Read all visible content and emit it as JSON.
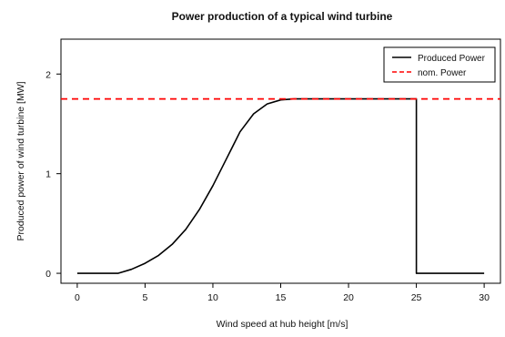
{
  "chart_data": {
    "type": "line",
    "title": "Power production of a typical wind turbine",
    "xlabel": "Wind speed at hub height [m/s]",
    "ylabel": "Produced power of wind turbine [MW]",
    "xlim": [
      -1.2,
      31.2
    ],
    "ylim": [
      -0.1,
      2.35
    ],
    "xticks": [
      0,
      5,
      10,
      15,
      20,
      25,
      30
    ],
    "yticks": [
      0,
      1,
      2
    ],
    "legend_position": "top-right",
    "series": [
      {
        "name": "Produced Power",
        "style": "solid",
        "color": "#000000",
        "x": [
          0,
          3,
          4,
          5,
          6,
          7,
          8,
          9,
          10,
          11,
          12,
          13,
          14,
          15,
          16,
          17,
          18,
          19,
          20,
          21,
          22,
          23,
          24,
          25,
          25,
          26,
          27,
          28,
          29,
          30
        ],
        "y": [
          0,
          0,
          0.04,
          0.1,
          0.18,
          0.29,
          0.44,
          0.64,
          0.88,
          1.15,
          1.42,
          1.6,
          1.7,
          1.74,
          1.75,
          1.75,
          1.75,
          1.75,
          1.75,
          1.75,
          1.75,
          1.75,
          1.75,
          1.75,
          0,
          0,
          0,
          0,
          0,
          0
        ]
      },
      {
        "name": "nom. Power",
        "style": "dashed",
        "color": "#ff0000",
        "x": [
          -1.2,
          31.2
        ],
        "y": [
          1.75,
          1.75
        ]
      }
    ]
  }
}
